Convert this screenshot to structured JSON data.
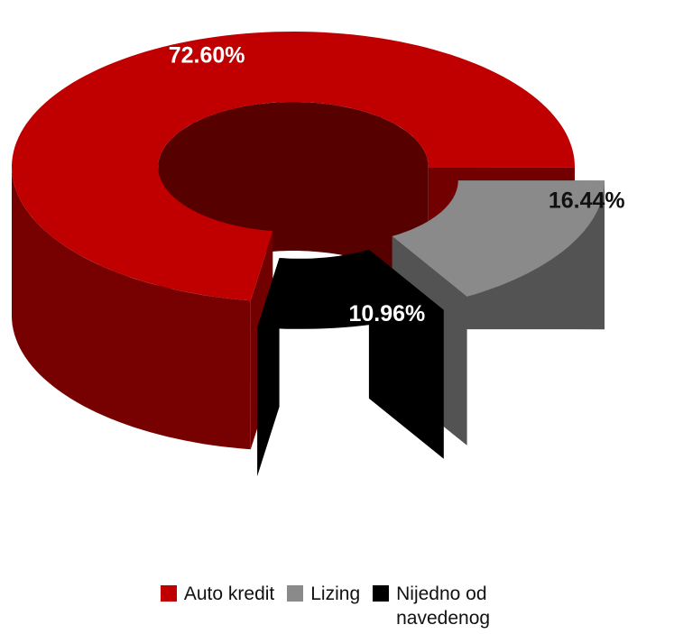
{
  "chart_data": {
    "type": "pie",
    "categories": [
      "Auto kredit",
      "Lizing",
      "Nijedno od navedenog"
    ],
    "values": [
      72.6,
      16.44,
      10.96
    ],
    "value_labels": [
      "72.60%",
      "16.44%",
      "10.96%"
    ],
    "colors": [
      "#c00000",
      "#8a8a8a",
      "#000000"
    ],
    "legend": "bottom"
  }
}
